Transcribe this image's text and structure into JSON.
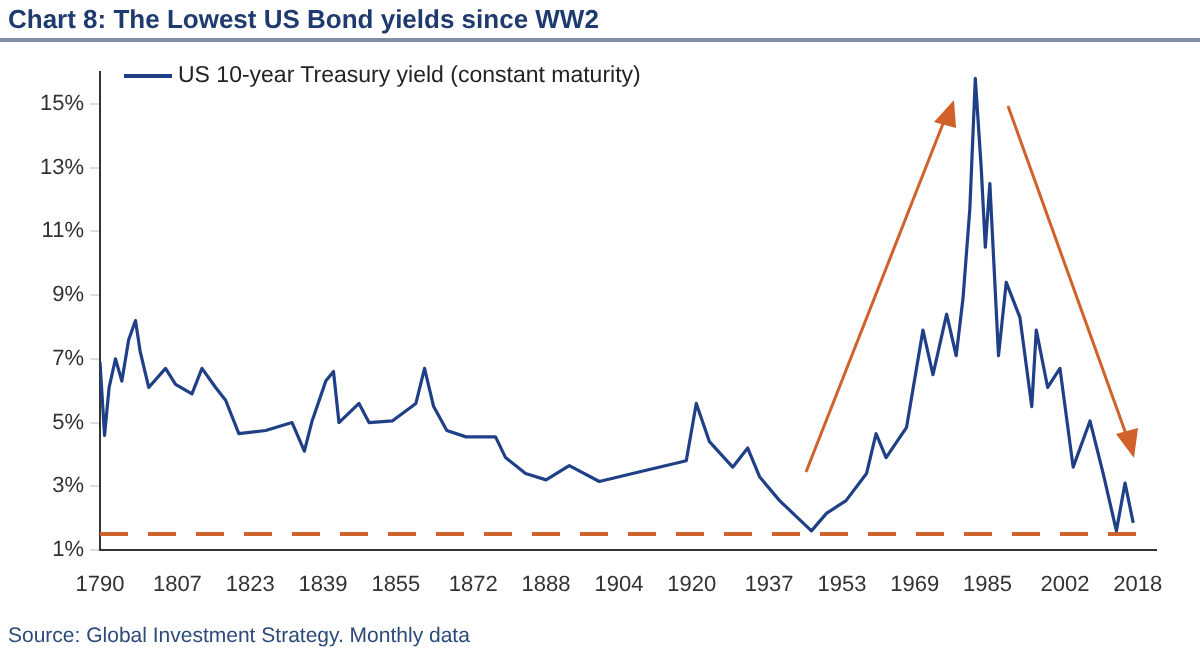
{
  "chart_data": {
    "type": "line",
    "title": "Chart 8: The Lowest US Bond yields since WW2",
    "annotations": [
      "Source: Global Investment Strategy. Monthly data"
    ],
    "series": [
      {
        "name": "US 10-year Treasury yield (constant maturity)",
        "color": "#1f3f86",
        "x": [
          1790,
          1791,
          1792,
          1793.4,
          1794.8,
          1796.3,
          1797.8,
          1798.8,
          1800.7,
          1804.4,
          1806.6,
          1810.2,
          1812.4,
          1815.4,
          1817.6,
          1820.5,
          1826.4,
          1832.2,
          1834.9,
          1836.6,
          1839.6,
          1841.3,
          1842.5,
          1846.9,
          1849.1,
          1854.2,
          1859.4,
          1861.3,
          1863.3,
          1866.2,
          1870.4,
          1876.9,
          1879.1,
          1883.5,
          1888,
          1893.1,
          1899.7,
          1907,
          1918.8,
          1921,
          1923.9,
          1929,
          1932.3,
          1934.9,
          1939.3,
          1943,
          1946.3,
          1949.6,
          1953.9,
          1958.4,
          1960.5,
          1962.7,
          1967.2,
          1970.8,
          1973,
          1976,
          1978.1,
          1979.6,
          1981.1,
          1982.3,
          1983.6,
          1984.5,
          1985.5,
          1987.4,
          1989.1,
          1992.1,
          1994.7,
          1995.7,
          1998.2,
          2000.9,
          2003.8,
          2007.5,
          2010.4,
          2013.3,
          2015.2,
          2017
        ],
        "values": [
          6.9,
          4.6,
          6.1,
          7.0,
          6.3,
          7.6,
          8.2,
          7.25,
          6.1,
          6.7,
          6.2,
          5.9,
          6.7,
          6.1,
          5.7,
          4.65,
          4.75,
          5.0,
          4.1,
          5.05,
          6.3,
          6.6,
          5.0,
          5.6,
          5.0,
          5.05,
          5.6,
          6.7,
          5.5,
          4.75,
          4.55,
          4.55,
          3.9,
          3.4,
          3.2,
          3.65,
          3.15,
          3.4,
          3.8,
          5.6,
          4.4,
          3.6,
          4.2,
          3.3,
          2.55,
          2.05,
          1.6,
          2.15,
          2.55,
          3.4,
          4.65,
          3.9,
          4.85,
          7.9,
          6.5,
          8.4,
          7.1,
          8.9,
          11.7,
          15.8,
          13.0,
          10.5,
          12.5,
          7.1,
          9.4,
          8.3,
          5.5,
          7.9,
          6.1,
          6.7,
          3.6,
          5.05,
          3.4,
          1.6,
          3.1,
          1.85
        ]
      }
    ],
    "xlim": [
      1790,
      2022
    ],
    "xticks": [
      1790,
      1807,
      1823,
      1839,
      1855,
      1872,
      1888,
      1904,
      1920,
      1937,
      1953,
      1969,
      1985,
      2002,
      2018
    ],
    "ylim": [
      1,
      16
    ],
    "yticks": [
      {
        "value": 1,
        "label": "1%"
      },
      {
        "value": 3,
        "label": "3%"
      },
      {
        "value": 5,
        "label": "5%"
      },
      {
        "value": 7,
        "label": "7%"
      },
      {
        "value": 9,
        "label": "9%"
      },
      {
        "value": 11,
        "label": "11%"
      },
      {
        "value": 13,
        "label": "13%"
      },
      {
        "value": 15,
        "label": "15%"
      }
    ],
    "ref_lines": [
      {
        "axis": "y",
        "value": 1.5,
        "color": "#d0612a",
        "line_style": "dashed"
      }
    ],
    "grid": false,
    "legend": "top left",
    "marker": "none",
    "line_style": "solid"
  }
}
